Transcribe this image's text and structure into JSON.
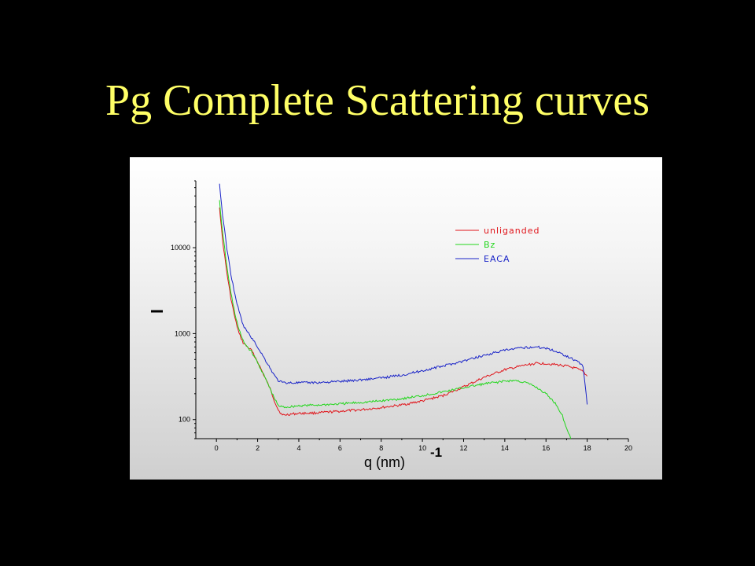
{
  "slide": {
    "title": "Pg Complete Scattering curves"
  },
  "chart_data": {
    "type": "line",
    "xlabel": "q (nm)",
    "xlabel_unit_superscript": "-1",
    "ylabel": "I",
    "xlim": [
      -1,
      20
    ],
    "ylim": [
      60,
      60000
    ],
    "yscale": "log",
    "x_ticks": [
      0,
      2,
      4,
      6,
      8,
      10,
      12,
      14,
      16,
      18,
      20
    ],
    "x_tick_labels": [
      "0",
      "2",
      "4",
      "6",
      "8",
      "10",
      "12",
      "14",
      "16",
      "18",
      "20"
    ],
    "y_ticks": [
      100,
      1000,
      10000
    ],
    "y_tick_labels": [
      "100",
      "1000",
      "10000"
    ],
    "grid": false,
    "legend_position": "top-right",
    "series": [
      {
        "name": "unliganded",
        "color": "#e0141a",
        "x": [
          0.15,
          0.3,
          0.5,
          0.7,
          0.9,
          1.1,
          1.3,
          1.5,
          1.7,
          2.0,
          2.3,
          2.6,
          2.8,
          3.0,
          3.2,
          3.5,
          4.0,
          5.0,
          6.0,
          7.0,
          8.0,
          9.0,
          10.0,
          11.0,
          12.0,
          13.0,
          14.0,
          15.0,
          15.5,
          16.0,
          17.0,
          17.5,
          17.8,
          18.0
        ],
        "y": [
          30000,
          12000,
          5200,
          2600,
          1500,
          1000,
          780,
          700,
          640,
          470,
          330,
          230,
          170,
          130,
          112,
          115,
          118,
          120,
          125,
          130,
          138,
          148,
          165,
          190,
          240,
          310,
          380,
          430,
          450,
          450,
          420,
          390,
          360,
          320
        ]
      },
      {
        "name": "Bz",
        "color": "#22d61c",
        "x": [
          0.15,
          0.3,
          0.5,
          0.7,
          0.9,
          1.1,
          1.3,
          1.5,
          1.7,
          2.0,
          2.3,
          2.6,
          2.8,
          3.0,
          3.2,
          3.5,
          4.0,
          5.0,
          6.0,
          7.0,
          8.0,
          9.0,
          10.0,
          11.0,
          12.0,
          13.0,
          14.0,
          14.5,
          15.0,
          15.5,
          16.0,
          16.5,
          16.8,
          17.0,
          17.2
        ],
        "y": [
          35000,
          15000,
          6200,
          3000,
          1700,
          1100,
          820,
          700,
          620,
          460,
          330,
          230,
          180,
          145,
          140,
          140,
          145,
          148,
          152,
          158,
          165,
          175,
          190,
          210,
          235,
          260,
          280,
          285,
          270,
          240,
          200,
          150,
          110,
          80,
          60
        ]
      },
      {
        "name": "EACA",
        "color": "#1a24c8",
        "x": [
          0.15,
          0.3,
          0.5,
          0.7,
          0.9,
          1.1,
          1.3,
          1.5,
          1.7,
          2.0,
          2.3,
          2.6,
          2.8,
          3.0,
          3.2,
          3.5,
          4.0,
          5.0,
          6.0,
          7.0,
          8.0,
          9.0,
          10.0,
          11.0,
          12.0,
          13.0,
          14.0,
          15.0,
          15.5,
          16.0,
          16.5,
          17.0,
          17.5,
          17.8,
          18.0
        ],
        "y": [
          55000,
          24000,
          10000,
          5000,
          2800,
          1800,
          1250,
          1050,
          900,
          700,
          530,
          400,
          330,
          285,
          270,
          268,
          268,
          270,
          278,
          290,
          305,
          330,
          370,
          420,
          480,
          560,
          640,
          690,
          700,
          680,
          620,
          550,
          480,
          420,
          150
        ]
      }
    ]
  }
}
